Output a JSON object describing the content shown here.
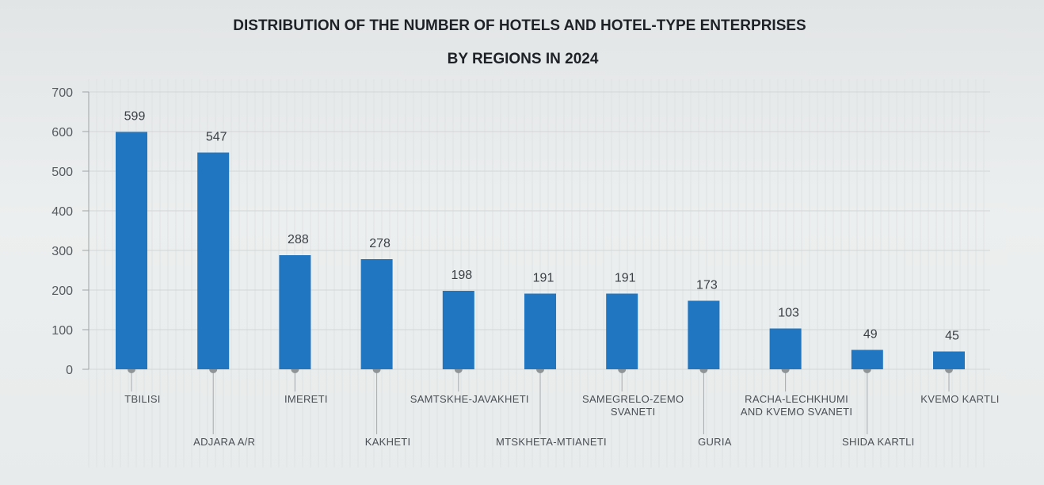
{
  "colors": {
    "bar": "#2176c2",
    "gridline": "#d3d6d7",
    "axis": "#9ea3a6",
    "connector": "#a6aaad",
    "marker": "#8f9496"
  },
  "chart_data": {
    "type": "bar",
    "title": "DISTRIBUTION OF THE NUMBER OF HOTELS AND HOTEL-TYPE ENTERPRISES",
    "subtitle": "BY REGIONS IN 2024",
    "categories": [
      "TBILISI",
      "ADJARA A/R",
      "IMERETI",
      "KAKHETI",
      "SAMTSKHE-JAVAKHETI",
      "MTSKHETA-MTIANETI",
      "SAMEGRELO-ZEMO SVANETI",
      "GURIA",
      "RACHA-LECHKHUMI AND KVEMO SVANETI",
      "SHIDA KARTLI",
      "KVEMO KARTLI"
    ],
    "category_label_lines": [
      [
        "TBILISI"
      ],
      [
        "ADJARA A/R"
      ],
      [
        "IMERETI"
      ],
      [
        "KAKHETI"
      ],
      [
        "SAMTSKHE-JAVAKHETI"
      ],
      [
        "MTSKHETA-MTIANETI"
      ],
      [
        "SAMEGRELO-ZEMO",
        "SVANETI"
      ],
      [
        "GURIA"
      ],
      [
        "RACHA-LECHKHUMI",
        "AND KVEMO SVANETI"
      ],
      [
        "SHIDA KARTLI"
      ],
      [
        "KVEMO KARTLI"
      ]
    ],
    "label_tier": [
      "upper",
      "lower",
      "upper",
      "lower",
      "upper",
      "lower",
      "upper",
      "lower",
      "upper",
      "lower",
      "upper"
    ],
    "values": [
      599,
      547,
      288,
      278,
      198,
      191,
      191,
      173,
      103,
      49,
      45
    ],
    "value_labels": [
      "599",
      "547",
      "288",
      "278",
      "198",
      "191",
      "191",
      "173",
      "103",
      "49",
      "45"
    ],
    "yticks": [
      0,
      100,
      200,
      300,
      400,
      500,
      600,
      700
    ],
    "ylim": [
      0,
      700
    ],
    "xlabel": "",
    "ylabel": "",
    "grid": true,
    "legend": "none"
  }
}
